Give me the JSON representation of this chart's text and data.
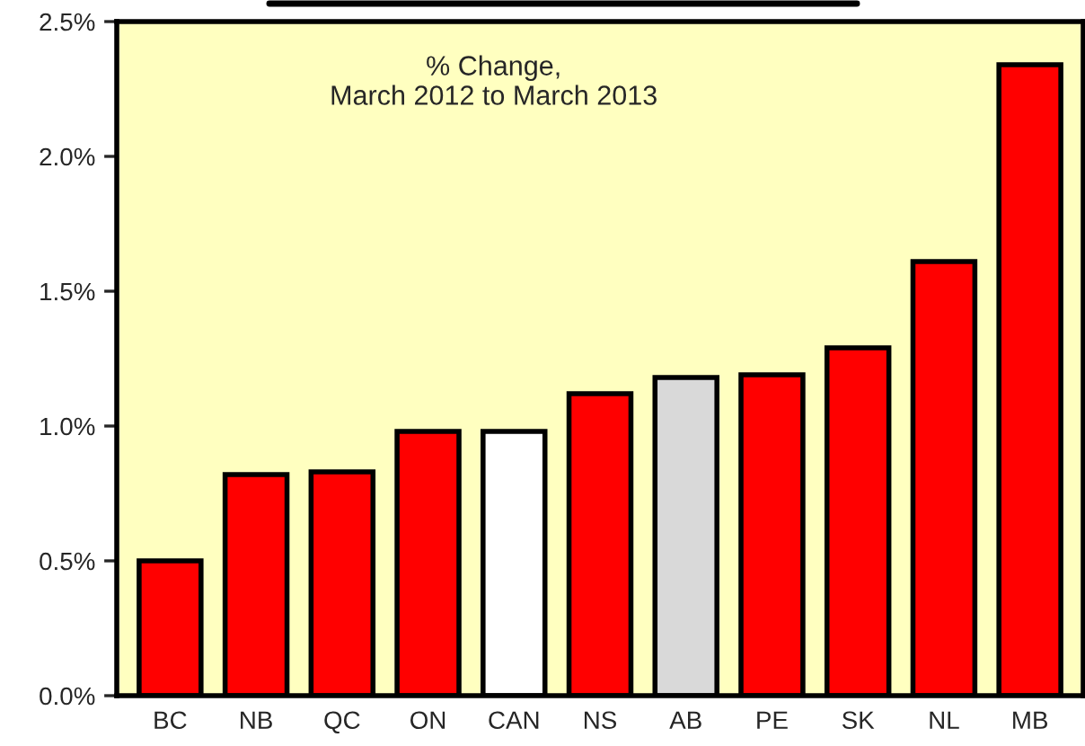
{
  "chart_data": {
    "type": "bar",
    "annotations": [
      "% Change,\nMarch 2012 to March 2013"
    ],
    "categories": [
      "BC",
      "NB",
      "QC",
      "ON",
      "CAN",
      "NS",
      "AB",
      "PE",
      "SK",
      "NL",
      "MB"
    ],
    "values": [
      0.5,
      0.82,
      0.83,
      0.98,
      0.98,
      1.12,
      1.18,
      1.19,
      1.29,
      1.61,
      2.34
    ],
    "colors": [
      "#ff0000",
      "#ff0000",
      "#ff0000",
      "#ff0000",
      "#ffffff",
      "#ff0000",
      "#d9d9d9",
      "#ff0000",
      "#ff0000",
      "#ff0000",
      "#ff0000"
    ],
    "ylim": [
      0,
      2.5
    ],
    "yticks": [
      {
        "value": 0,
        "label": "0.0%"
      },
      {
        "value": 0.5,
        "label": "0.5%"
      },
      {
        "value": 1.0,
        "label": "1.0%"
      },
      {
        "value": 1.5,
        "label": "1.5%"
      },
      {
        "value": 2.0,
        "label": "2.0%"
      },
      {
        "value": 2.5,
        "label": "2.5%"
      }
    ],
    "grid": false,
    "legend": false
  }
}
